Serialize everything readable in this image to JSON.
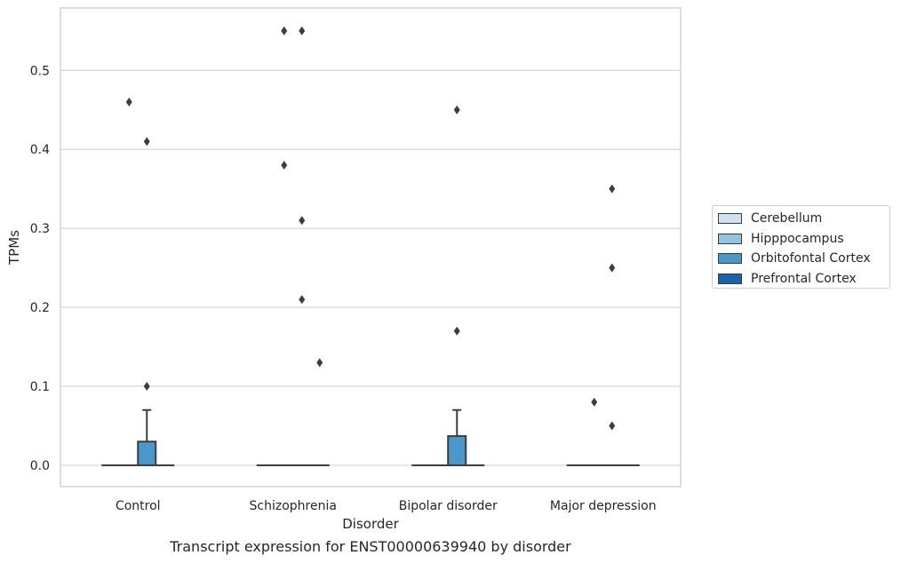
{
  "chart_data": {
    "type": "box",
    "xlabel": "Disorder",
    "ylabel": "TPMs",
    "caption": "Transcript expression for ENST00000639940 by disorder",
    "categories": [
      "Control",
      "Schizophrenia",
      "Bipolar disorder",
      "Major depression"
    ],
    "yticks": [
      "0.0",
      "0.1",
      "0.2",
      "0.3",
      "0.4",
      "0.5"
    ],
    "ylim": [
      -0.027,
      0.579
    ],
    "grid": true,
    "legend_position": "right",
    "series": [
      {
        "name": "Cerebellum",
        "color": "#d0e1f2",
        "boxes": [
          {
            "min": 0,
            "q1": 0,
            "median": 0,
            "q3": 0,
            "max": 0,
            "outliers": []
          },
          {
            "min": 0,
            "q1": 0,
            "median": 0,
            "q3": 0,
            "max": 0,
            "outliers": []
          },
          {
            "min": 0,
            "q1": 0,
            "median": 0,
            "q3": 0,
            "max": 0,
            "outliers": []
          },
          {
            "min": 0,
            "q1": 0,
            "median": 0,
            "q3": 0,
            "max": 0,
            "outliers": []
          }
        ]
      },
      {
        "name": "Hipppocampus",
        "color": "#94c4df",
        "boxes": [
          {
            "min": 0,
            "q1": 0,
            "median": 0,
            "q3": 0,
            "max": 0,
            "outliers": [
              0.46
            ]
          },
          {
            "min": 0,
            "q1": 0,
            "median": 0,
            "q3": 0,
            "max": 0,
            "outliers": [
              0.38,
              0.55
            ]
          },
          {
            "min": 0,
            "q1": 0,
            "median": 0,
            "q3": 0,
            "max": 0,
            "outliers": []
          },
          {
            "min": 0,
            "q1": 0,
            "median": 0,
            "q3": 0,
            "max": 0,
            "outliers": [
              0.08
            ]
          }
        ]
      },
      {
        "name": "Orbitofontal Cortex",
        "color": "#4a98c9",
        "boxes": [
          {
            "min": 0,
            "q1": 0,
            "median": 0,
            "q3": 0.03,
            "max": 0.07,
            "outliers": [
              0.1,
              0.41
            ]
          },
          {
            "min": 0,
            "q1": 0,
            "median": 0,
            "q3": 0,
            "max": 0,
            "outliers": [
              0.21,
              0.31,
              0.55
            ]
          },
          {
            "min": 0,
            "q1": 0,
            "median": 0,
            "q3": 0.037,
            "max": 0.07,
            "outliers": [
              0.17,
              0.45
            ]
          },
          {
            "min": 0,
            "q1": 0,
            "median": 0,
            "q3": 0,
            "max": 0,
            "outliers": [
              0.05,
              0.25,
              0.35
            ]
          }
        ]
      },
      {
        "name": "Prefrontal Cortex",
        "color": "#1764ab",
        "boxes": [
          {
            "min": 0,
            "q1": 0,
            "median": 0,
            "q3": 0,
            "max": 0,
            "outliers": []
          },
          {
            "min": 0,
            "q1": 0,
            "median": 0,
            "q3": 0,
            "max": 0,
            "outliers": [
              0.13
            ]
          },
          {
            "min": 0,
            "q1": 0,
            "median": 0,
            "q3": 0,
            "max": 0,
            "outliers": []
          },
          {
            "min": 0,
            "q1": 0,
            "median": 0,
            "q3": 0,
            "max": 0,
            "outliers": []
          }
        ]
      }
    ]
  }
}
